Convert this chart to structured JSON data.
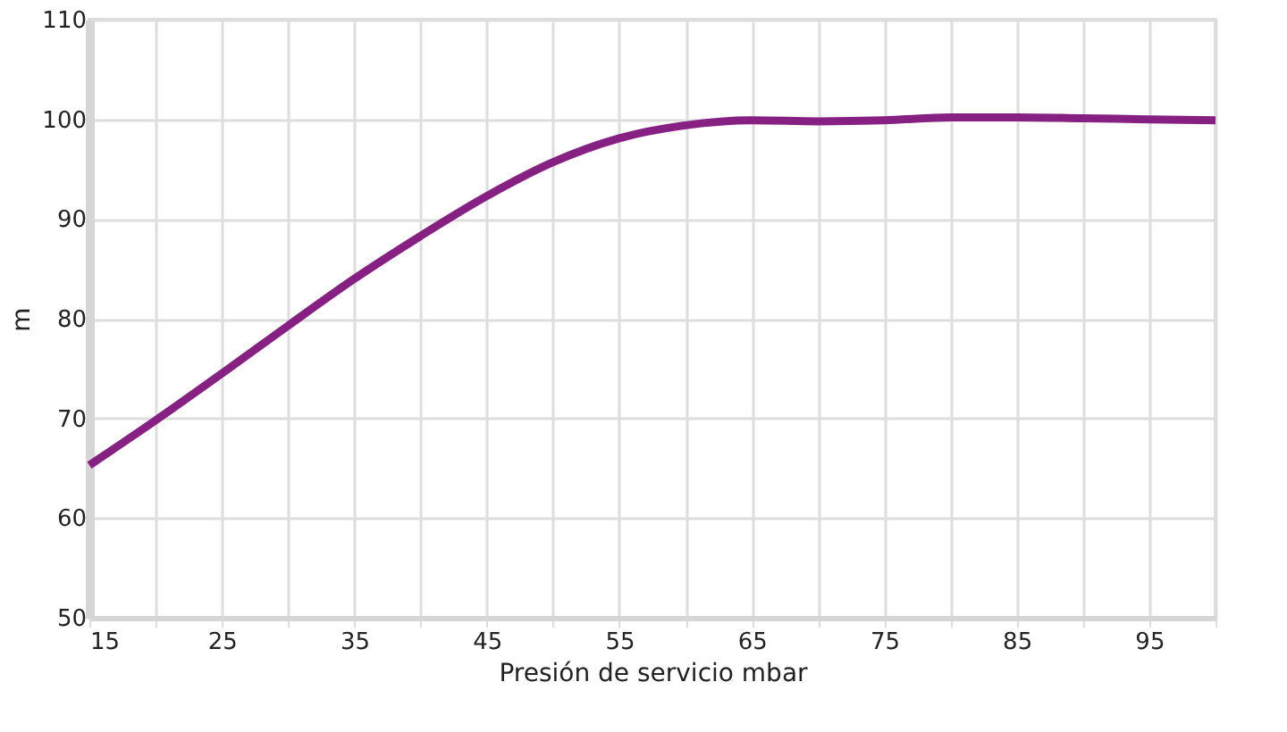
{
  "chart_data": {
    "type": "line",
    "xlabel": "Presión de servicio mbar",
    "ylabel": "m",
    "x": [
      15,
      20,
      25,
      30,
      35,
      40,
      45,
      50,
      55,
      60,
      65,
      70,
      75,
      80,
      85,
      90,
      95,
      100
    ],
    "series": [
      {
        "color": "#862183",
        "values": [
          65.3,
          69.8,
          74.5,
          79.3,
          84,
          88.3,
          92.3,
          95.7,
          98.1,
          99.4,
          99.9,
          99.8,
          99.9,
          100.2,
          100.2,
          100.1,
          100,
          99.9
        ]
      }
    ],
    "xlim": [
      15,
      100
    ],
    "xticks": [
      15,
      {
        "value": 20,
        "label": null
      },
      25,
      {
        "value": 30,
        "label": null
      },
      35,
      {
        "value": 40,
        "label": null
      },
      45,
      {
        "value": 50,
        "label": null
      },
      55,
      {
        "value": 60,
        "label": null
      },
      65,
      {
        "value": 70,
        "label": null
      },
      75,
      {
        "value": 80,
        "label": null
      },
      85,
      {
        "value": 90,
        "label": null
      },
      95,
      {
        "value": 100,
        "label": null
      }
    ],
    "ylim": [
      50,
      110
    ],
    "yticks": [
      50,
      60,
      70,
      80,
      90,
      100,
      110
    ],
    "grid": true,
    "marker": "none",
    "line_style": "solid"
  }
}
